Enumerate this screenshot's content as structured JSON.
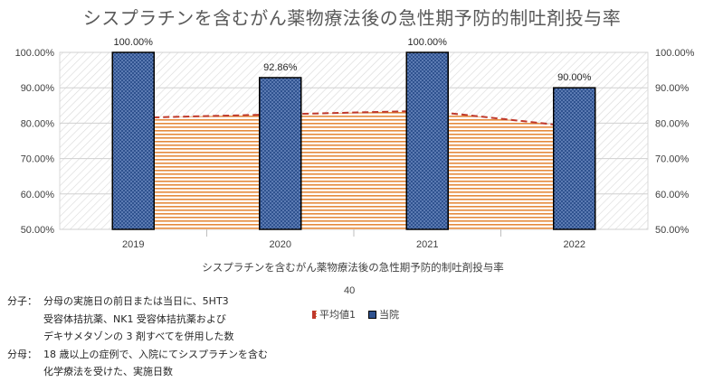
{
  "chart_data": {
    "type": "bar",
    "title": "シスプラチンを含むがん薬物療法後の急性期予防的制吐剤投与率",
    "xlabel": "シスプラチンを含むがん薬物療法後の急性期予防的制吐剤投与率",
    "categories": [
      "2019",
      "2020",
      "2021",
      "2022"
    ],
    "ylim": [
      50,
      100
    ],
    "y_ticks": [
      "50.00%",
      "60.00%",
      "70.00%",
      "80.00%",
      "90.00%",
      "100.00%"
    ],
    "secondary_y_ticks": [
      "50.00%",
      "60.00%",
      "70.00%",
      "80.00%",
      "90.00%",
      "100.00%"
    ],
    "grid": true,
    "legend_position": "bottom",
    "series": [
      {
        "name": "平均値1",
        "kind": "area",
        "values": [
          81.5,
          82.5,
          83.5,
          79.0
        ],
        "color": "#e07020",
        "line_color": "#c0392b"
      },
      {
        "name": "当院",
        "kind": "bar",
        "values": [
          100.0,
          92.86,
          100.0,
          90.0
        ],
        "data_labels": [
          "100.00%",
          "92.86%",
          "100.00%",
          "90.00%"
        ],
        "color": "#2f528f"
      }
    ],
    "extra_label": "40"
  },
  "notes": {
    "numerator_label": "分子：",
    "numerator_lines": [
      "分母の実施日の前日または当日に、5HT3",
      "受容体拮抗薬、NK1 受容体拮抗薬および",
      "デキサメタゾンの 3 剤すべてを併用した数"
    ],
    "denominator_label": "分母：",
    "denominator_lines": [
      "18 歳以上の症例で、入院にてシスプラチンを含む",
      "化学療法を受けた、実施日数"
    ]
  }
}
